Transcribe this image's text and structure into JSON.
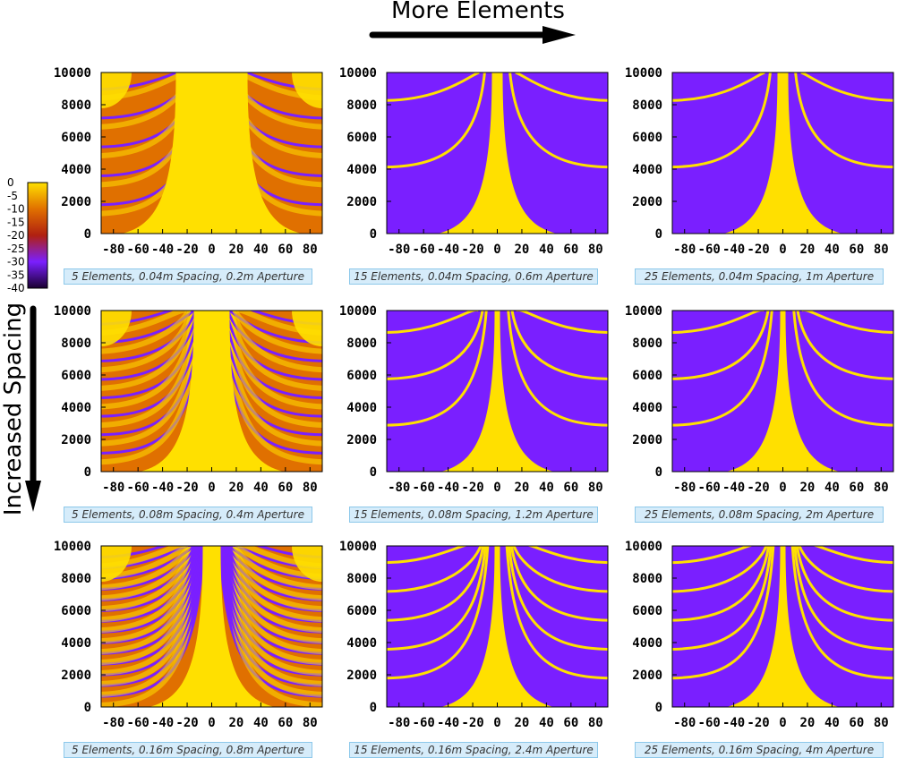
{
  "header": {
    "top_label": "More Elements",
    "left_label": "Increased Spacing"
  },
  "colors": {
    "yellow": "#ffe000",
    "orange": "#e07000",
    "red": "#b02010",
    "purple": "#7a1fff",
    "dark": "#1a0030"
  },
  "colorbar": {
    "ticks": [
      "0",
      "-5",
      "-10",
      "-15",
      "-20",
      "-25",
      "-30",
      "-35",
      "-40"
    ]
  },
  "chart_data": [
    {
      "type": "heatmap",
      "elements": 5,
      "spacing": 0.04,
      "caption": "5 Elements, 0.04m Spacing, 0.2m Aperture",
      "xticks": [
        "-80",
        "-60",
        "-40",
        "-20",
        "0",
        "20",
        "40",
        "60",
        "80"
      ],
      "yticks": [
        "0",
        "2000",
        "4000",
        "6000",
        "8000",
        "10000"
      ],
      "xlim": [
        -90,
        90
      ],
      "ylim": [
        0,
        10000
      ],
      "zlim": [
        -40,
        0
      ]
    },
    {
      "type": "heatmap",
      "elements": 15,
      "spacing": 0.04,
      "caption": "15 Elements, 0.04m Spacing, 0.6m Aperture",
      "xticks": [
        "-80",
        "-60",
        "-40",
        "-20",
        "0",
        "20",
        "40",
        "60",
        "80"
      ],
      "yticks": [
        "0",
        "2000",
        "4000",
        "6000",
        "8000",
        "10000"
      ],
      "xlim": [
        -90,
        90
      ],
      "ylim": [
        0,
        10000
      ],
      "zlim": [
        -40,
        0
      ]
    },
    {
      "type": "heatmap",
      "elements": 25,
      "spacing": 0.04,
      "caption": "25 Elements, 0.04m Spacing, 1m Aperture",
      "xticks": [
        "-80",
        "-60",
        "-40",
        "-20",
        "0",
        "20",
        "40",
        "60",
        "80"
      ],
      "yticks": [
        "0",
        "2000",
        "4000",
        "6000",
        "8000",
        "10000"
      ],
      "xlim": [
        -90,
        90
      ],
      "ylim": [
        0,
        10000
      ],
      "zlim": [
        -40,
        0
      ]
    },
    {
      "type": "heatmap",
      "elements": 5,
      "spacing": 0.08,
      "caption": "5 Elements, 0.08m Spacing, 0.4m Aperture",
      "xticks": [
        "-80",
        "-60",
        "-40",
        "-20",
        "0",
        "20",
        "40",
        "60",
        "80"
      ],
      "yticks": [
        "0",
        "2000",
        "4000",
        "6000",
        "8000",
        "10000"
      ],
      "xlim": [
        -90,
        90
      ],
      "ylim": [
        0,
        10000
      ],
      "zlim": [
        -40,
        0
      ]
    },
    {
      "type": "heatmap",
      "elements": 15,
      "spacing": 0.08,
      "caption": "15 Elements, 0.08m Spacing, 1.2m Aperture",
      "xticks": [
        "-80",
        "-60",
        "-40",
        "-20",
        "0",
        "20",
        "40",
        "60",
        "80"
      ],
      "yticks": [
        "0",
        "2000",
        "4000",
        "6000",
        "8000",
        "10000"
      ],
      "xlim": [
        -90,
        90
      ],
      "ylim": [
        0,
        10000
      ],
      "zlim": [
        -40,
        0
      ]
    },
    {
      "type": "heatmap",
      "elements": 25,
      "spacing": 0.08,
      "caption": "25 Elements, 0.08m Spacing, 2m Aperture",
      "xticks": [
        "-80",
        "-60",
        "-40",
        "-20",
        "0",
        "20",
        "40",
        "60",
        "80"
      ],
      "yticks": [
        "0",
        "2000",
        "4000",
        "6000",
        "8000",
        "10000"
      ],
      "xlim": [
        -90,
        90
      ],
      "ylim": [
        0,
        10000
      ],
      "zlim": [
        -40,
        0
      ]
    },
    {
      "type": "heatmap",
      "elements": 5,
      "spacing": 0.16,
      "caption": "5 Elements, 0.16m Spacing, 0.8m Aperture",
      "xticks": [
        "-80",
        "-60",
        "-40",
        "-20",
        "0",
        "20",
        "40",
        "60",
        "80"
      ],
      "yticks": [
        "0",
        "2000",
        "4000",
        "6000",
        "8000",
        "10000"
      ],
      "xlim": [
        -90,
        90
      ],
      "ylim": [
        0,
        10000
      ],
      "zlim": [
        -40,
        0
      ]
    },
    {
      "type": "heatmap",
      "elements": 15,
      "spacing": 0.16,
      "caption": "15 Elements, 0.16m Spacing, 2.4m Aperture",
      "xticks": [
        "-80",
        "-60",
        "-40",
        "-20",
        "0",
        "20",
        "40",
        "60",
        "80"
      ],
      "yticks": [
        "0",
        "2000",
        "4000",
        "6000",
        "8000",
        "10000"
      ],
      "xlim": [
        -90,
        90
      ],
      "ylim": [
        0,
        10000
      ],
      "zlim": [
        -40,
        0
      ]
    },
    {
      "type": "heatmap",
      "elements": 25,
      "spacing": 0.16,
      "caption": "25 Elements, 0.16m Spacing, 4m Aperture",
      "xticks": [
        "-80",
        "-60",
        "-40",
        "-20",
        "0",
        "20",
        "40",
        "60",
        "80"
      ],
      "yticks": [
        "0",
        "2000",
        "4000",
        "6000",
        "8000",
        "10000"
      ],
      "xlim": [
        -90,
        90
      ],
      "ylim": [
        0,
        10000
      ],
      "zlim": [
        -40,
        0
      ]
    }
  ]
}
